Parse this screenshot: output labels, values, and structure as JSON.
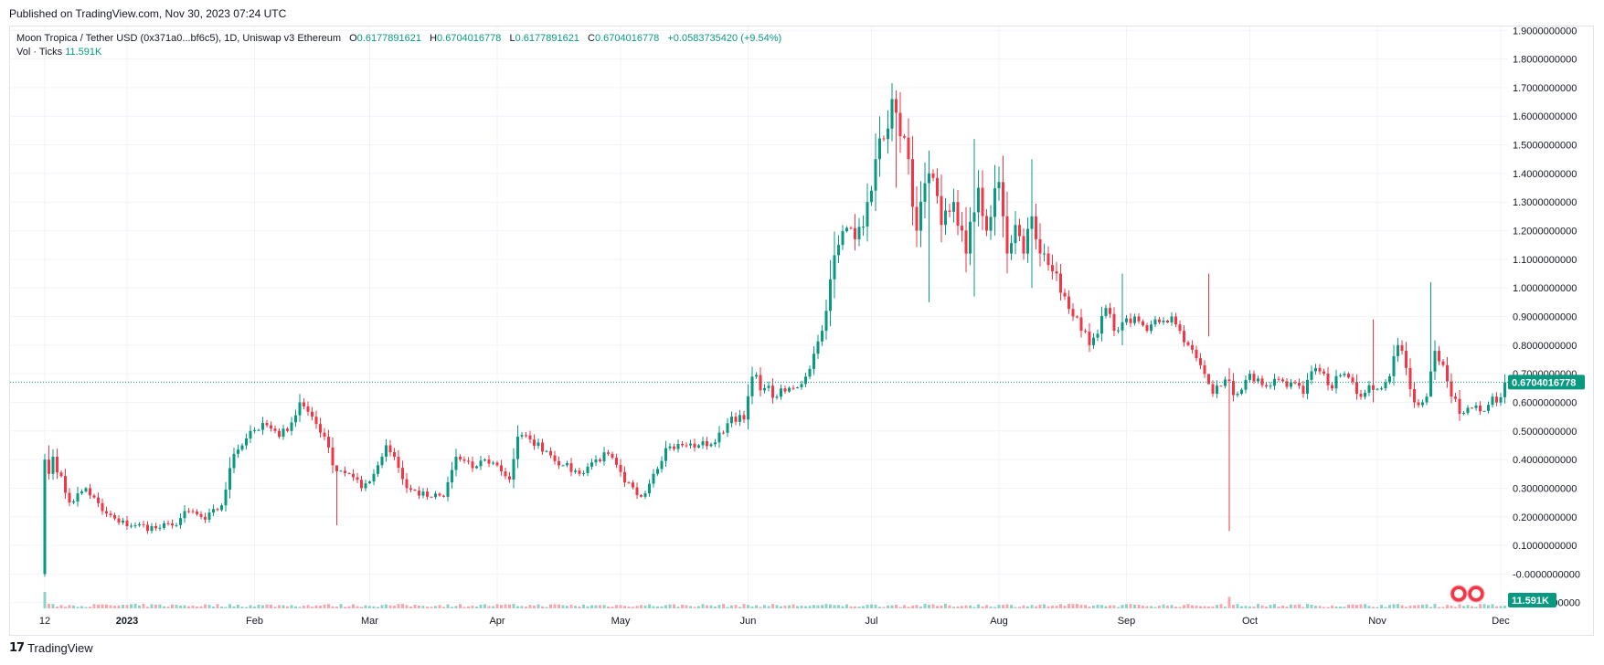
{
  "published": "Published on TradingView.com, Nov 30, 2023 07:24 UTC",
  "legend": {
    "symbol": "Moon Tropica / Tether USD (0x371a0...bf6c5), 1D, Uniswap v3 Ethereum",
    "o_label": "O",
    "o_value": "0.6177891621",
    "h_label": "H",
    "h_value": "0.6704016778",
    "l_label": "L",
    "l_value": "0.6177891621",
    "c_label": "C",
    "c_value": "0.6704016778",
    "change": "+0.0583735420 (+9.54%)",
    "vol_label": "Vol · Ticks",
    "vol_value": "11.591K"
  },
  "badges": {
    "price": "0.6704016778",
    "volume": "11.591K"
  },
  "brand": "TradingView",
  "colors": {
    "up": "#089981",
    "down": "#f23645",
    "vol_up": "#8fd3c7",
    "vol_down": "#f8a7ae",
    "grid": "#f0f3fa"
  },
  "chart_data": {
    "type": "candlestick",
    "series": [
      {
        "name": "Moon Tropica / Tether USD"
      }
    ],
    "ylim": [
      -0.12,
      1.92
    ],
    "y_ticks": [
      "1.9000000000",
      "1.8000000000",
      "1.7000000000",
      "1.6000000000",
      "1.5000000000",
      "1.4000000000",
      "1.3000000000",
      "1.2000000000",
      "1.1000000000",
      "1.0000000000",
      "0.9000000000",
      "0.8000000000",
      "0.7000000000",
      "0.6000000000",
      "0.5000000000",
      "0.4000000000",
      "0.3000000000",
      "0.2000000000",
      "0.1000000000",
      "-0.0000000000",
      "-0.1000000000"
    ],
    "y_tick_values": [
      1.9,
      1.8,
      1.7,
      1.6,
      1.5,
      1.4,
      1.3,
      1.2,
      1.1,
      1.0,
      0.9,
      0.8,
      0.7,
      0.6,
      0.5,
      0.4,
      0.3,
      0.2,
      0.1,
      0.0,
      -0.1
    ],
    "x_ticks": [
      {
        "label": "12",
        "day": 0
      },
      {
        "label": "2023",
        "day": 20
      },
      {
        "label": "Feb",
        "day": 51
      },
      {
        "label": "Mar",
        "day": 79
      },
      {
        "label": "Apr",
        "day": 110
      },
      {
        "label": "May",
        "day": 140
      },
      {
        "label": "Jun",
        "day": 171
      },
      {
        "label": "Jul",
        "day": 201
      },
      {
        "label": "Aug",
        "day": 232
      },
      {
        "label": "Sep",
        "day": 263
      },
      {
        "label": "Oct",
        "day": 293
      },
      {
        "label": "Nov",
        "day": 324
      },
      {
        "label": "Dec",
        "day": 354
      }
    ],
    "last_close": 0.6704016778,
    "path": [
      [
        0,
        0.4
      ],
      [
        1,
        0.35
      ],
      [
        2,
        0.41
      ],
      [
        6,
        0.25
      ],
      [
        10,
        0.3
      ],
      [
        14,
        0.22
      ],
      [
        18,
        0.18
      ],
      [
        22,
        0.17
      ],
      [
        27,
        0.16
      ],
      [
        31,
        0.17
      ],
      [
        35,
        0.22
      ],
      [
        39,
        0.19
      ],
      [
        43,
        0.24
      ],
      [
        46,
        0.42
      ],
      [
        50,
        0.5
      ],
      [
        54,
        0.52
      ],
      [
        57,
        0.48
      ],
      [
        60,
        0.53
      ],
      [
        62,
        0.6
      ],
      [
        65,
        0.55
      ],
      [
        68,
        0.48
      ],
      [
        70,
        0.38
      ],
      [
        74,
        0.35
      ],
      [
        77,
        0.3
      ],
      [
        80,
        0.35
      ],
      [
        83,
        0.45
      ],
      [
        85,
        0.41
      ],
      [
        88,
        0.3
      ],
      [
        93,
        0.27
      ],
      [
        97,
        0.27
      ],
      [
        100,
        0.41
      ],
      [
        104,
        0.37
      ],
      [
        107,
        0.4
      ],
      [
        110,
        0.38
      ],
      [
        113,
        0.33
      ],
      [
        115,
        0.48
      ],
      [
        118,
        0.47
      ],
      [
        122,
        0.43
      ],
      [
        126,
        0.38
      ],
      [
        130,
        0.35
      ],
      [
        133,
        0.39
      ],
      [
        137,
        0.42
      ],
      [
        141,
        0.32
      ],
      [
        145,
        0.27
      ],
      [
        148,
        0.35
      ],
      [
        151,
        0.44
      ],
      [
        155,
        0.45
      ],
      [
        159,
        0.45
      ],
      [
        163,
        0.46
      ],
      [
        167,
        0.55
      ],
      [
        170,
        0.54
      ],
      [
        172,
        0.69
      ],
      [
        175,
        0.65
      ],
      [
        178,
        0.62
      ],
      [
        182,
        0.65
      ],
      [
        185,
        0.69
      ],
      [
        187,
        0.77
      ],
      [
        189,
        0.85
      ],
      [
        191,
        1.03
      ],
      [
        193,
        1.15
      ],
      [
        195,
        1.21
      ],
      [
        197,
        1.17
      ],
      [
        200,
        1.3
      ],
      [
        202,
        1.45
      ],
      [
        204,
        1.52
      ],
      [
        206,
        1.66
      ],
      [
        208,
        1.53
      ],
      [
        210,
        1.45
      ],
      [
        212,
        1.2
      ],
      [
        215,
        1.4
      ],
      [
        218,
        1.22
      ],
      [
        221,
        1.3
      ],
      [
        224,
        1.12
      ],
      [
        227,
        1.35
      ],
      [
        229,
        1.2
      ],
      [
        232,
        1.37
      ],
      [
        234,
        1.12
      ],
      [
        236,
        1.22
      ],
      [
        238,
        1.12
      ],
      [
        240,
        1.25
      ],
      [
        242,
        1.12
      ],
      [
        244,
        1.08
      ],
      [
        246,
        1.05
      ],
      [
        248,
        0.97
      ],
      [
        250,
        0.9
      ],
      [
        252,
        0.85
      ],
      [
        254,
        0.8
      ],
      [
        256,
        0.84
      ],
      [
        258,
        0.93
      ],
      [
        260,
        0.85
      ],
      [
        262,
        0.88
      ],
      [
        265,
        0.9
      ],
      [
        268,
        0.85
      ],
      [
        271,
        0.88
      ],
      [
        274,
        0.9
      ],
      [
        276,
        0.85
      ],
      [
        278,
        0.8
      ],
      [
        281,
        0.73
      ],
      [
        284,
        0.63
      ],
      [
        287,
        0.68
      ],
      [
        290,
        0.63
      ],
      [
        293,
        0.7
      ],
      [
        296,
        0.66
      ],
      [
        300,
        0.68
      ],
      [
        303,
        0.67
      ],
      [
        306,
        0.63
      ],
      [
        309,
        0.72
      ],
      [
        312,
        0.66
      ],
      [
        316,
        0.7
      ],
      [
        319,
        0.63
      ],
      [
        322,
        0.66
      ],
      [
        326,
        0.67
      ],
      [
        329,
        0.8
      ],
      [
        331,
        0.72
      ],
      [
        333,
        0.6
      ],
      [
        336,
        0.62
      ],
      [
        338,
        0.78
      ],
      [
        340,
        0.73
      ],
      [
        342,
        0.62
      ],
      [
        344,
        0.56
      ],
      [
        347,
        0.58
      ],
      [
        350,
        0.57
      ],
      [
        352,
        0.62
      ],
      [
        354,
        0.6177891621
      ],
      [
        355,
        0.6704016778
      ]
    ],
    "wicks": [
      {
        "day": 0,
        "high": 0.42,
        "low": -0.01
      },
      {
        "day": 1,
        "high": 0.45,
        "low": 0.33
      },
      {
        "day": 71,
        "high": 0.36,
        "low": 0.17
      },
      {
        "day": 207,
        "high": 1.69,
        "low": 1.35
      },
      {
        "day": 215,
        "high": 1.48,
        "low": 0.95
      },
      {
        "day": 226,
        "high": 1.52,
        "low": 0.97
      },
      {
        "day": 240,
        "high": 1.45,
        "low": 1.0
      },
      {
        "day": 262,
        "high": 1.05,
        "low": 0.8
      },
      {
        "day": 283,
        "high": 1.05,
        "low": 0.83
      },
      {
        "day": 288,
        "high": 0.72,
        "low": 0.15
      },
      {
        "day": 323,
        "high": 0.89,
        "low": 0.6
      },
      {
        "day": 337,
        "high": 1.02,
        "low": 0.62
      }
    ],
    "volume_spikes": [
      {
        "day": 0,
        "rel": 1.0
      },
      {
        "day": 288,
        "rel": 0.7
      }
    ]
  }
}
